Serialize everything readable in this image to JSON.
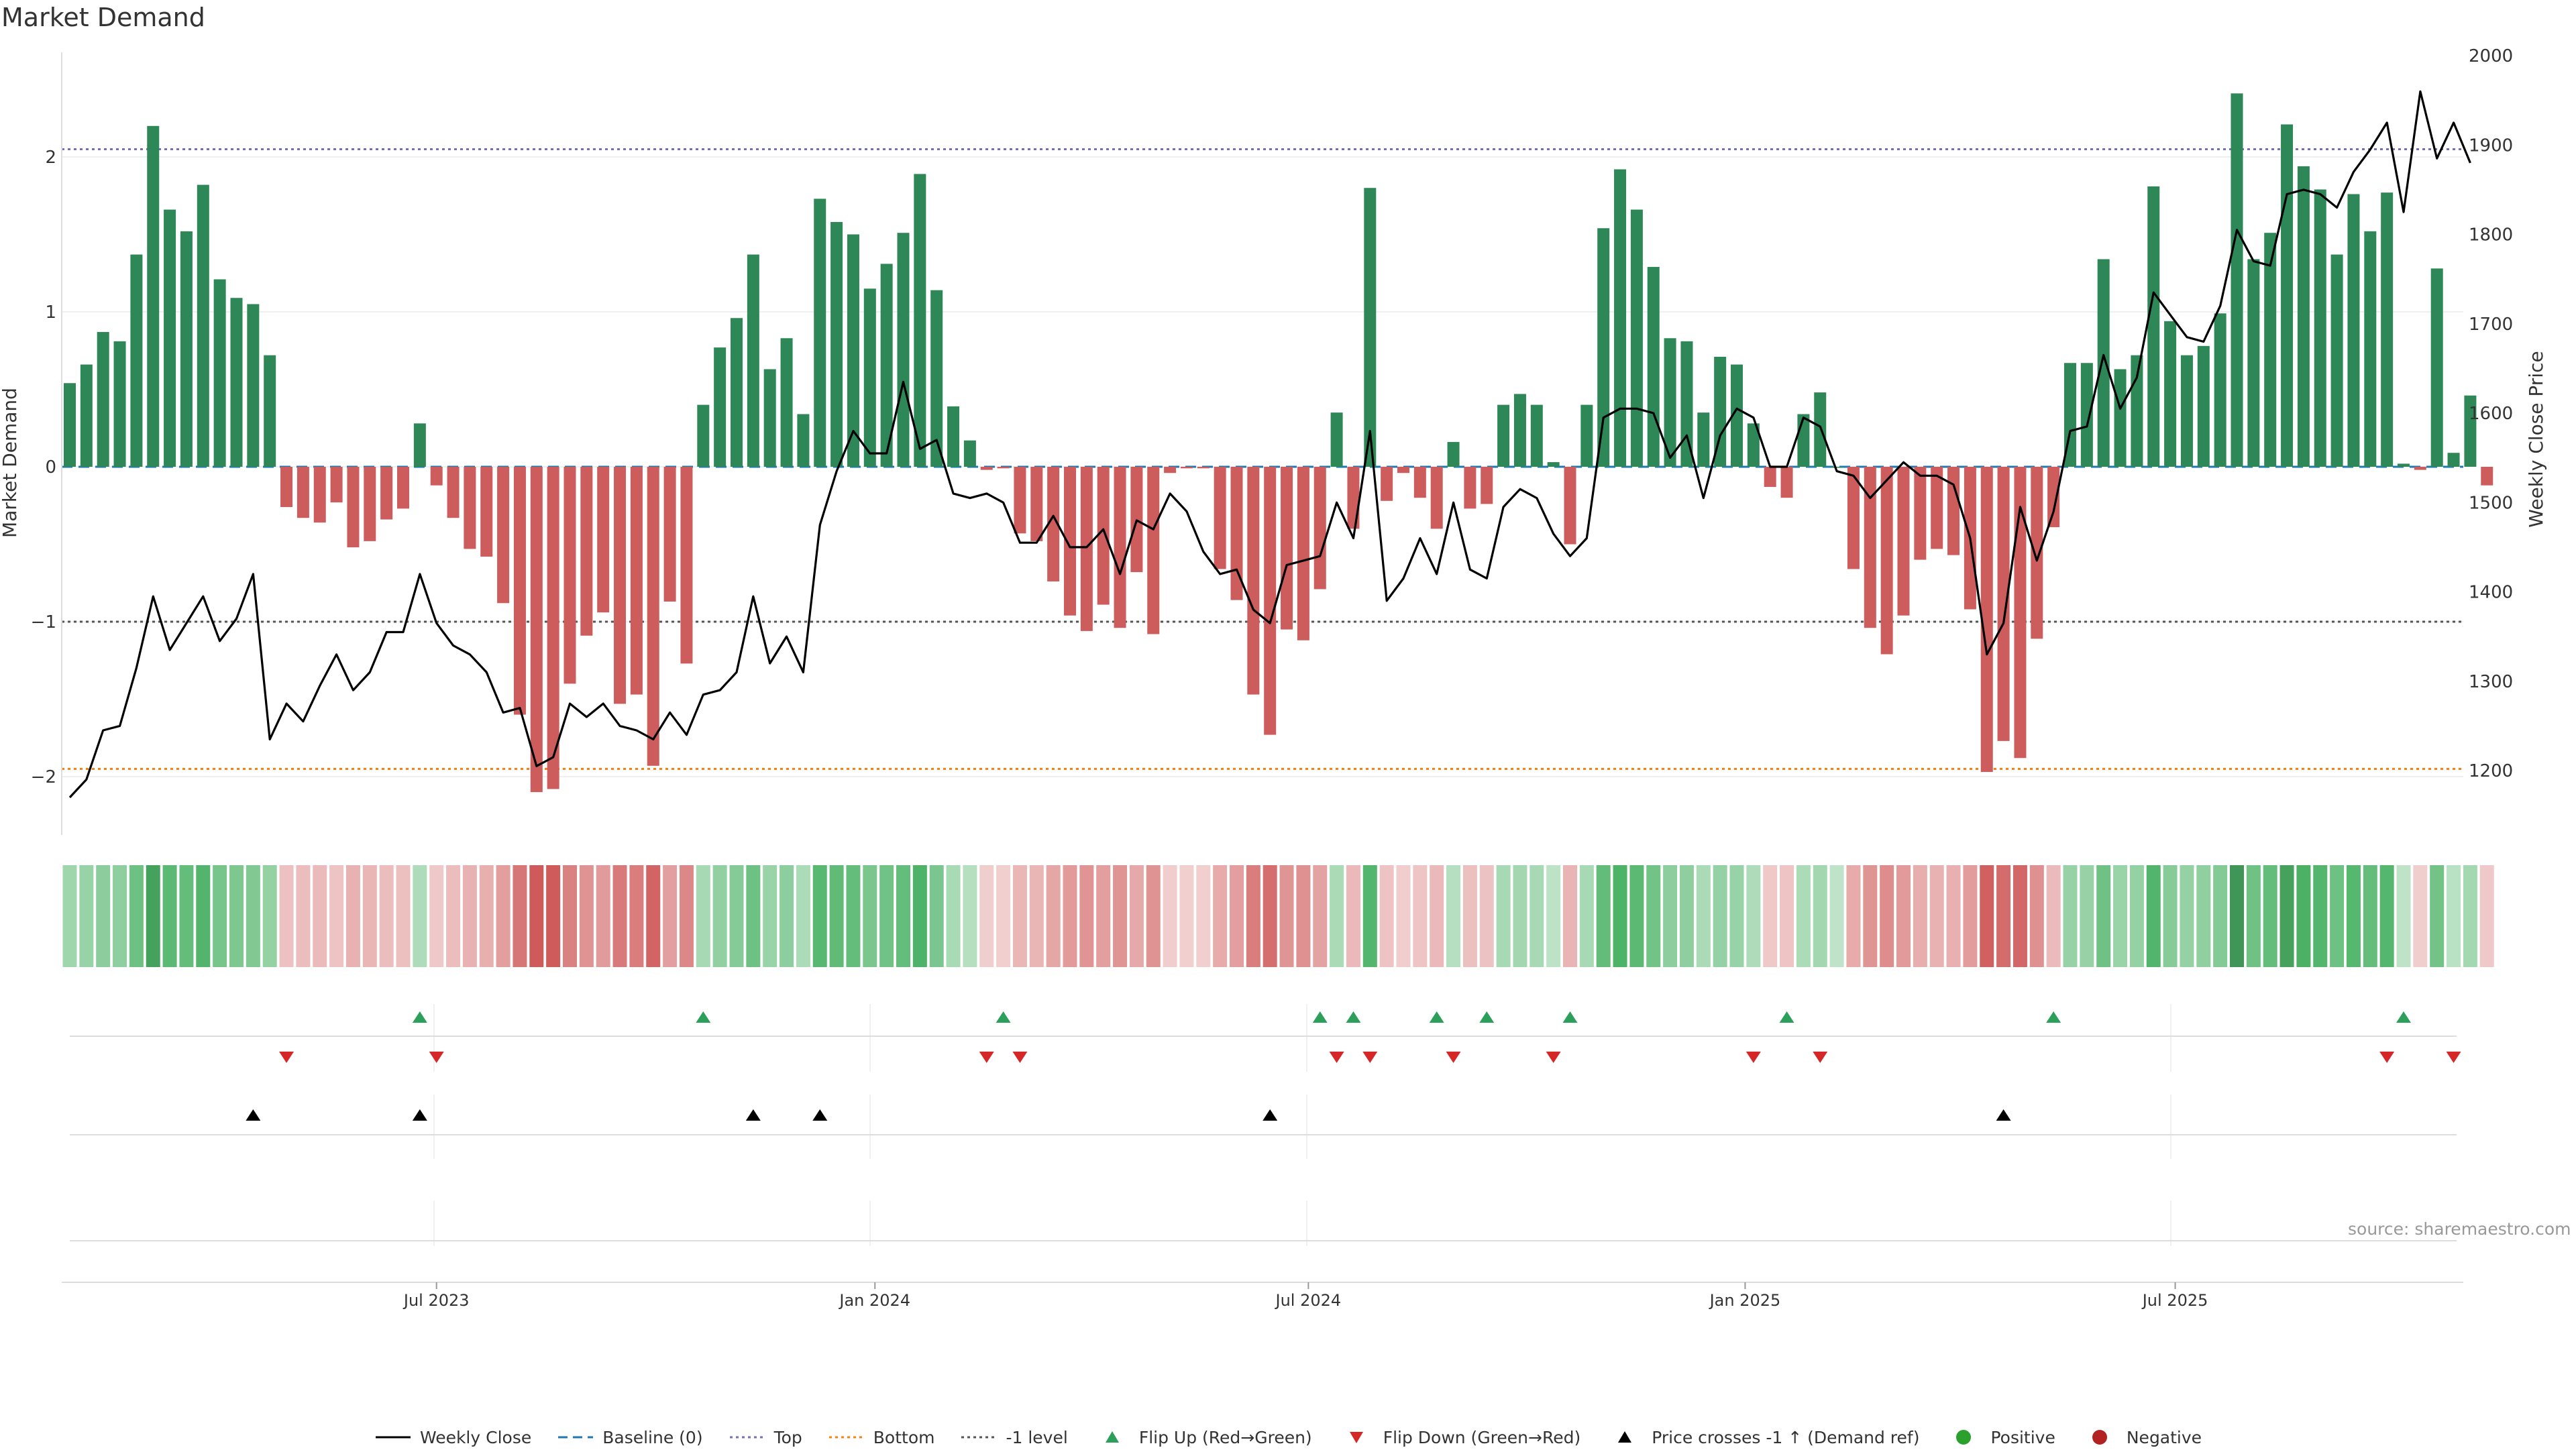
{
  "chart_data": {
    "type": "bar",
    "title": "Market Demand",
    "ylabel": "Market Demand",
    "y2label": "Weekly Close Price",
    "ylim": [
      -2.35,
      2.68
    ],
    "y2lim": [
      1140,
      2000
    ],
    "yticks": [
      2,
      1,
      0,
      -1,
      -2
    ],
    "ytick_labels": [
      "2",
      "1",
      "0",
      "−1",
      "−2"
    ],
    "y2ticks": [
      2000,
      1900,
      1800,
      1700,
      1600,
      1500,
      1400,
      1300,
      1200
    ],
    "xticks": [
      {
        "label": "Jul 2023",
        "index": 22
      },
      {
        "label": "Jan 2024",
        "index": 48.3
      },
      {
        "label": "Jul 2024",
        "index": 74.3
      },
      {
        "label": "Jan 2025",
        "index": 100.5
      },
      {
        "label": "Jul 2025",
        "index": 126.3
      }
    ],
    "reference_lines": {
      "top": 2.05,
      "bottom": -1.95,
      "minus_one": -1.0,
      "baseline": 0
    },
    "demand": [
      0.54,
      0.66,
      0.87,
      0.81,
      1.37,
      2.2,
      1.66,
      1.52,
      1.82,
      1.21,
      1.09,
      1.05,
      0.72,
      -0.26,
      -0.33,
      -0.36,
      -0.23,
      -0.52,
      -0.48,
      -0.34,
      -0.27,
      0.28,
      -0.12,
      -0.33,
      -0.53,
      -0.58,
      -0.88,
      -1.6,
      -2.1,
      -2.08,
      -1.4,
      -1.09,
      -0.94,
      -1.53,
      -1.47,
      -1.93,
      -0.87,
      -1.27,
      0.4,
      0.77,
      0.96,
      1.37,
      0.63,
      0.83,
      0.34,
      1.73,
      1.58,
      1.5,
      1.15,
      1.31,
      1.51,
      1.89,
      1.14,
      0.39,
      0.17,
      -0.02,
      -0.01,
      -0.43,
      -0.48,
      -0.74,
      -0.96,
      -1.06,
      -0.89,
      -1.04,
      -0.68,
      -1.08,
      -0.04,
      -0.01,
      -0.01,
      -0.66,
      -0.86,
      -1.47,
      -1.73,
      -1.05,
      -1.12,
      -0.79,
      0.35,
      -0.4,
      1.8,
      -0.22,
      -0.04,
      -0.2,
      -0.4,
      0.16,
      -0.27,
      -0.24,
      0.4,
      0.47,
      0.4,
      0.03,
      -0.5,
      0.4,
      1.54,
      1.92,
      1.66,
      1.29,
      0.83,
      0.81,
      0.35,
      0.71,
      0.66,
      0.28,
      -0.13,
      -0.2,
      0.34,
      0.48,
      0.0,
      -0.66,
      -1.04,
      -1.21,
      -0.96,
      -0.6,
      -0.53,
      -0.57,
      -0.92,
      -1.97,
      -1.77,
      -1.88,
      -1.11,
      -0.39,
      0.67,
      0.67,
      1.34,
      0.63,
      0.72,
      1.81,
      0.94,
      0.72,
      0.78,
      0.99,
      2.41,
      1.34,
      1.51,
      2.21,
      1.94,
      1.79,
      1.37,
      1.76,
      1.52,
      1.77,
      0.02,
      -0.02,
      1.28,
      0.09,
      0.46,
      -0.12
    ],
    "price": [
      1170,
      1190,
      1245,
      1250,
      1315,
      1395,
      1335,
      1365,
      1395,
      1345,
      1370,
      1420,
      1235,
      1275,
      1255,
      1295,
      1330,
      1290,
      1310,
      1355,
      1355,
      1420,
      1365,
      1340,
      1330,
      1310,
      1265,
      1270,
      1205,
      1215,
      1275,
      1260,
      1275,
      1250,
      1245,
      1235,
      1265,
      1240,
      1285,
      1290,
      1310,
      1395,
      1320,
      1350,
      1310,
      1475,
      1535,
      1580,
      1555,
      1555,
      1635,
      1560,
      1570,
      1510,
      1505,
      1510,
      1500,
      1455,
      1455,
      1485,
      1450,
      1450,
      1470,
      1420,
      1480,
      1470,
      1510,
      1490,
      1445,
      1420,
      1425,
      1380,
      1365,
      1430,
      1435,
      1440,
      1500,
      1460,
      1580,
      1390,
      1415,
      1460,
      1420,
      1500,
      1425,
      1415,
      1495,
      1515,
      1505,
      1465,
      1440,
      1460,
      1595,
      1605,
      1605,
      1600,
      1550,
      1575,
      1505,
      1575,
      1605,
      1595,
      1540,
      1540,
      1595,
      1585,
      1535,
      1530,
      1505,
      1525,
      1545,
      1530,
      1530,
      1520,
      1460,
      1330,
      1365,
      1495,
      1435,
      1490,
      1580,
      1585,
      1665,
      1605,
      1640,
      1735,
      1710,
      1685,
      1680,
      1720,
      1805,
      1770,
      1765,
      1845,
      1850,
      1845,
      1830,
      1870,
      1895,
      1925,
      1825,
      1960,
      1885,
      1925,
      1880
    ],
    "heat_strip": "color intensity per week mirrors demand sign and magnitude",
    "flip_up_indices": [
      21,
      38,
      56,
      75,
      77,
      82,
      85,
      90,
      103,
      119,
      140
    ],
    "flip_down_indices": [
      13,
      22,
      55,
      57,
      76,
      78,
      83,
      89,
      101,
      105,
      139,
      143
    ],
    "price_cross_indices": [
      11,
      21,
      41,
      45,
      72,
      116
    ]
  },
  "legend": [
    {
      "label": "Weekly Close",
      "icon": "solid-line",
      "color": "#000000"
    },
    {
      "label": "Baseline (0)",
      "icon": "dashed-line",
      "color": "#1f77b4"
    },
    {
      "label": "Top",
      "icon": "dotted-line",
      "color": "#7570b3"
    },
    {
      "label": "Bottom",
      "icon": "dotted-line",
      "color": "#ff7f0e"
    },
    {
      "label": "-1 level",
      "icon": "dotted-line",
      "color": "#555555"
    },
    {
      "label": "Flip Up (Red→Green)",
      "icon": "triangle-up",
      "color": "#2ca05a"
    },
    {
      "label": "Flip Down (Green→Red)",
      "icon": "triangle-down",
      "color": "#d62728"
    },
    {
      "label": "Price crosses -1 ↑ (Demand ref)",
      "icon": "triangle-up",
      "color": "#000000"
    },
    {
      "label": "Positive",
      "icon": "circle",
      "color": "#2ca02c"
    },
    {
      "label": "Negative",
      "icon": "circle",
      "color": "#b22222"
    }
  ],
  "colors": {
    "positive_bar": "#2e8757",
    "negative_bar": "#cd5c5c",
    "price_line": "#000000"
  },
  "source": "source: sharemaestro.com"
}
